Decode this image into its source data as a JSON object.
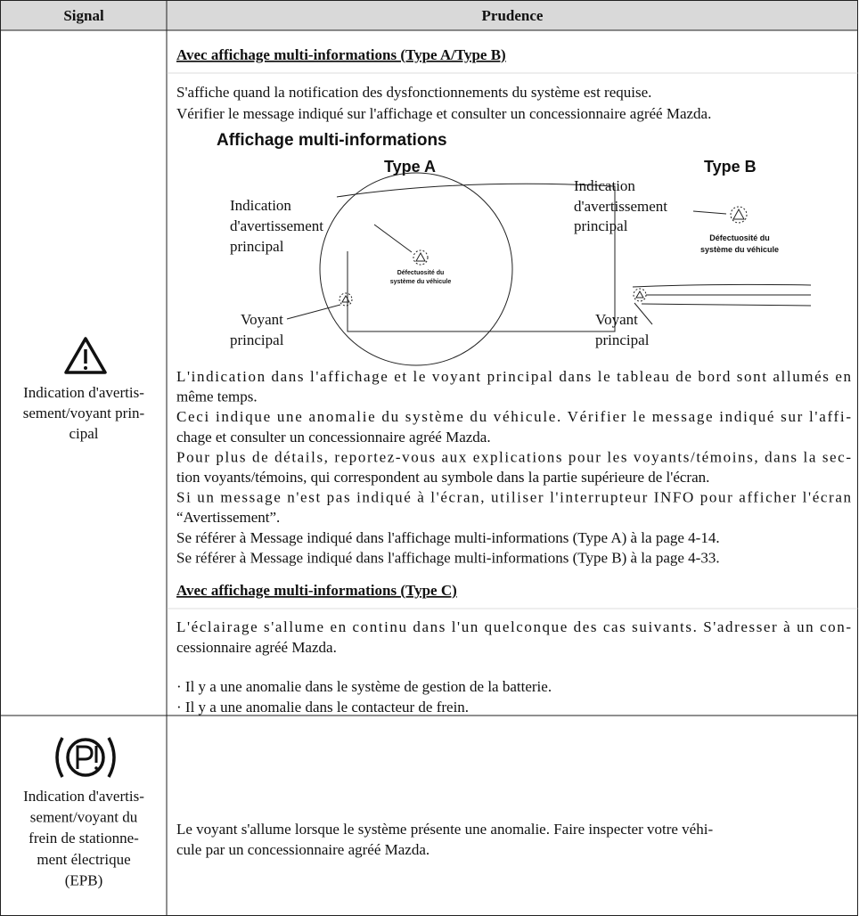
{
  "header": {
    "signal": "Signal",
    "prudence": "Prudence"
  },
  "rows": [
    {
      "signal_lines": [
        "Indication d'avertis-",
        "sement/voyant prin-",
        "cipal"
      ],
      "heading_1": "Avec affichage multi-informations (Type A/Type B)",
      "intro_lines": [
        "S'affiche quand la notification des dysfonctionnements du système est requise.",
        "Vérifier le message indiqué sur l'affichage et consulter un concessionnaire agréé Mazda."
      ],
      "figure": {
        "title": "Affichage multi-informations",
        "type_a": {
          "label": "Type A",
          "indication_lines": [
            "Indication",
            "d'avertissement",
            "principal"
          ],
          "screen_lines": [
            "Défectuosité du",
            "système du véhicule"
          ],
          "voyant_lines": [
            "Voyant",
            "principal"
          ]
        },
        "type_b": {
          "label": "Type B",
          "indication_lines": [
            "Indication",
            "d'avertissement",
            "principal"
          ],
          "screen_lines": [
            "Défectuosité du",
            "système du véhicule"
          ],
          "voyant_lines": [
            "Voyant",
            "principal"
          ]
        }
      },
      "body_lines": [
        "L'indication dans l'affichage et le voyant principal dans le tableau de bord sont allumés en",
        "même temps.",
        "Ceci indique une anomalie du système du véhicule. Vérifier le message indiqué sur l'affi-",
        "chage et consulter un concessionnaire agréé Mazda.",
        "Pour plus de détails, reportez-vous aux explications pour les voyants/témoins, dans la sec-",
        "tion voyants/témoins, qui correspondent au symbole dans la partie supérieure de l'écran.",
        "Si un message n'est pas indiqué à l'écran, utiliser l'interrupteur INFO pour afficher l'écran",
        "“Avertissement”.",
        "Se référer à Message indiqué dans l'affichage multi-informations (Type A) à la page 4-14.",
        "Se référer à Message indiqué dans l'affichage multi-informations (Type B) à la page 4-33."
      ],
      "heading_2": "Avec affichage multi-informations (Type C)",
      "type_c_lines": [
        "L'éclairage s'allume en continu dans l'un quelconque des cas suivants. S'adresser à un con-",
        "cessionnaire agréé Mazda."
      ],
      "bullets": [
        "· Il y a une anomalie dans le système de gestion de la batterie.",
        "· Il y a une anomalie dans le contacteur de frein."
      ]
    },
    {
      "signal_lines": [
        "Indication d'avertis-",
        "sement/voyant du",
        "frein de stationne-",
        "ment électrique",
        "(EPB)"
      ],
      "body_lines": [
        "Le voyant s'allume lorsque le système présente une anomalie. Faire inspecter votre véhi-",
        "cule par un concessionnaire agréé Mazda."
      ]
    }
  ]
}
